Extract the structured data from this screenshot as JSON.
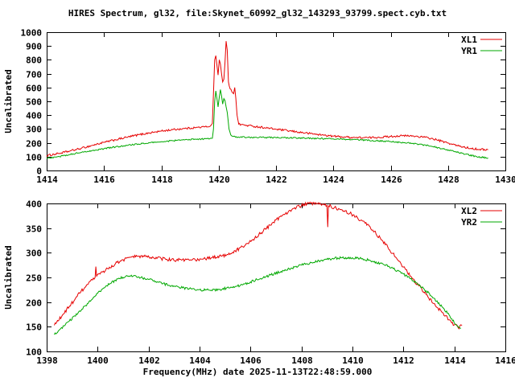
{
  "figure": {
    "title": "HIRES Spectrum, gl32, file:Skynet_60992_gl32_143293_93799.spect.cyb.txt",
    "xlabel": "Frequency(MHz) date 2025-11-13T22:48:59.000"
  },
  "chart_data": [
    {
      "type": "line",
      "title": "",
      "ylabel": "Uncalibrated",
      "xlim": [
        1414,
        1430
      ],
      "ylim": [
        0,
        1000
      ],
      "xtick_step": 2,
      "ytick_step": 100,
      "grid": false,
      "legend_position": "top-right",
      "series": [
        {
          "name": "XL1",
          "color": "#e60000",
          "noise": 7,
          "points": [
            [
              1414.0,
              108
            ],
            [
              1414.4,
              122
            ],
            [
              1414.8,
              140
            ],
            [
              1415.2,
              160
            ],
            [
              1415.6,
              182
            ],
            [
              1416.0,
              203
            ],
            [
              1416.4,
              222
            ],
            [
              1416.8,
              240
            ],
            [
              1417.2,
              258
            ],
            [
              1417.6,
              272
            ],
            [
              1418.0,
              285
            ],
            [
              1418.4,
              295
            ],
            [
              1418.8,
              303
            ],
            [
              1419.2,
              310
            ],
            [
              1419.5,
              315
            ],
            [
              1419.7,
              320
            ],
            [
              1419.78,
              340
            ],
            [
              1419.82,
              560
            ],
            [
              1419.86,
              800
            ],
            [
              1419.9,
              830
            ],
            [
              1419.94,
              760
            ],
            [
              1419.98,
              690
            ],
            [
              1420.02,
              800
            ],
            [
              1420.06,
              770
            ],
            [
              1420.1,
              700
            ],
            [
              1420.14,
              640
            ],
            [
              1420.18,
              660
            ],
            [
              1420.22,
              780
            ],
            [
              1420.26,
              935
            ],
            [
              1420.3,
              870
            ],
            [
              1420.34,
              640
            ],
            [
              1420.4,
              590
            ],
            [
              1420.46,
              570
            ],
            [
              1420.52,
              555
            ],
            [
              1420.56,
              600
            ],
            [
              1420.6,
              520
            ],
            [
              1420.64,
              400
            ],
            [
              1420.7,
              335
            ],
            [
              1420.9,
              328
            ],
            [
              1421.2,
              320
            ],
            [
              1421.6,
              310
            ],
            [
              1422.0,
              298
            ],
            [
              1422.4,
              288
            ],
            [
              1422.8,
              277
            ],
            [
              1423.2,
              267
            ],
            [
              1423.6,
              257
            ],
            [
              1424.0,
              248
            ],
            [
              1424.4,
              242
            ],
            [
              1424.8,
              238
            ],
            [
              1425.2,
              237
            ],
            [
              1425.6,
              240
            ],
            [
              1426.0,
              246
            ],
            [
              1426.4,
              251
            ],
            [
              1426.8,
              249
            ],
            [
              1427.2,
              240
            ],
            [
              1427.6,
              222
            ],
            [
              1428.0,
              198
            ],
            [
              1428.4,
              175
            ],
            [
              1428.8,
              160
            ],
            [
              1429.1,
              153
            ],
            [
              1429.4,
              150
            ]
          ]
        },
        {
          "name": "YR1",
          "color": "#00a800",
          "noise": 5,
          "points": [
            [
              1414.0,
              88
            ],
            [
              1414.4,
              100
            ],
            [
              1414.8,
              115
            ],
            [
              1415.2,
              130
            ],
            [
              1415.6,
              145
            ],
            [
              1416.0,
              158
            ],
            [
              1416.4,
              170
            ],
            [
              1416.8,
              181
            ],
            [
              1417.2,
              191
            ],
            [
              1417.6,
              200
            ],
            [
              1418.0,
              208
            ],
            [
              1418.4,
              215
            ],
            [
              1418.8,
              221
            ],
            [
              1419.2,
              226
            ],
            [
              1419.6,
              230
            ],
            [
              1419.78,
              233
            ],
            [
              1419.82,
              300
            ],
            [
              1419.86,
              500
            ],
            [
              1419.9,
              575
            ],
            [
              1419.94,
              520
            ],
            [
              1419.98,
              460
            ],
            [
              1420.02,
              530
            ],
            [
              1420.06,
              585
            ],
            [
              1420.1,
              540
            ],
            [
              1420.14,
              480
            ],
            [
              1420.18,
              520
            ],
            [
              1420.22,
              505
            ],
            [
              1420.26,
              460
            ],
            [
              1420.3,
              420
            ],
            [
              1420.36,
              300
            ],
            [
              1420.42,
              258
            ],
            [
              1420.5,
              246
            ],
            [
              1420.7,
              242
            ],
            [
              1421.0,
              240
            ],
            [
              1421.5,
              239
            ],
            [
              1422.0,
              238
            ],
            [
              1422.5,
              236
            ],
            [
              1423.0,
              234
            ],
            [
              1423.5,
              231
            ],
            [
              1424.0,
              228
            ],
            [
              1424.5,
              224
            ],
            [
              1425.0,
              220
            ],
            [
              1425.5,
              215
            ],
            [
              1426.0,
              209
            ],
            [
              1426.5,
              201
            ],
            [
              1427.0,
              190
            ],
            [
              1427.4,
              176
            ],
            [
              1427.8,
              158
            ],
            [
              1428.2,
              138
            ],
            [
              1428.6,
              118
            ],
            [
              1429.0,
              100
            ],
            [
              1429.4,
              90
            ]
          ]
        }
      ]
    },
    {
      "type": "line",
      "title": "",
      "ylabel": "Uncalibrated",
      "xlim": [
        1398,
        1416
      ],
      "ylim": [
        100,
        400
      ],
      "xtick_step": 2,
      "ytick_step": 50,
      "grid": false,
      "legend_position": "top-right",
      "series": [
        {
          "name": "XL2",
          "color": "#e60000",
          "noise": 3.5,
          "points": [
            [
              1398.3,
              153
            ],
            [
              1398.6,
              172
            ],
            [
              1398.9,
              192
            ],
            [
              1399.2,
              212
            ],
            [
              1399.5,
              230
            ],
            [
              1399.8,
              245
            ],
            [
              1399.9,
              250
            ],
            [
              1399.93,
              272
            ],
            [
              1399.96,
              252
            ],
            [
              1400.1,
              257
            ],
            [
              1400.4,
              268
            ],
            [
              1400.7,
              278
            ],
            [
              1401.0,
              286
            ],
            [
              1401.3,
              291
            ],
            [
              1401.6,
              293
            ],
            [
              1401.9,
              292
            ],
            [
              1402.2,
              290
            ],
            [
              1402.5,
              288
            ],
            [
              1402.9,
              286
            ],
            [
              1403.3,
              285
            ],
            [
              1403.7,
              285
            ],
            [
              1404.1,
              287
            ],
            [
              1404.5,
              290
            ],
            [
              1404.9,
              294
            ],
            [
              1405.3,
              301
            ],
            [
              1405.7,
              312
            ],
            [
              1406.1,
              327
            ],
            [
              1406.5,
              344
            ],
            [
              1406.9,
              362
            ],
            [
              1407.3,
              378
            ],
            [
              1407.7,
              390
            ],
            [
              1408.0,
              396
            ],
            [
              1408.3,
              400
            ],
            [
              1408.6,
              399
            ],
            [
              1408.9,
              397
            ],
            [
              1409.0,
              396
            ],
            [
              1409.03,
              352
            ],
            [
              1409.06,
              395
            ],
            [
              1409.3,
              392
            ],
            [
              1409.6,
              387
            ],
            [
              1409.9,
              380
            ],
            [
              1410.2,
              371
            ],
            [
              1410.5,
              360
            ],
            [
              1410.8,
              346
            ],
            [
              1411.1,
              329
            ],
            [
              1411.4,
              310
            ],
            [
              1411.7,
              291
            ],
            [
              1412.0,
              271
            ],
            [
              1412.3,
              252
            ],
            [
              1412.6,
              233
            ],
            [
              1412.9,
              215
            ],
            [
              1413.2,
              197
            ],
            [
              1413.5,
              180
            ],
            [
              1413.8,
              164
            ],
            [
              1414.0,
              154
            ],
            [
              1414.15,
              148
            ],
            [
              1414.3,
              153
            ]
          ]
        },
        {
          "name": "YR2",
          "color": "#00a800",
          "noise": 2.5,
          "points": [
            [
              1398.3,
              134
            ],
            [
              1398.7,
              152
            ],
            [
              1399.1,
              172
            ],
            [
              1399.5,
              192
            ],
            [
              1399.9,
              212
            ],
            [
              1400.2,
              227
            ],
            [
              1400.5,
              238
            ],
            [
              1400.8,
              247
            ],
            [
              1401.1,
              252
            ],
            [
              1401.4,
              253
            ],
            [
              1401.7,
              250
            ],
            [
              1402.0,
              246
            ],
            [
              1402.4,
              240
            ],
            [
              1402.8,
              234
            ],
            [
              1403.2,
              230
            ],
            [
              1403.6,
              227
            ],
            [
              1404.0,
              225
            ],
            [
              1404.4,
              224
            ],
            [
              1404.8,
              226
            ],
            [
              1405.2,
              229
            ],
            [
              1405.6,
              234
            ],
            [
              1406.0,
              241
            ],
            [
              1406.4,
              248
            ],
            [
              1406.8,
              255
            ],
            [
              1407.2,
              262
            ],
            [
              1407.6,
              269
            ],
            [
              1408.0,
              275
            ],
            [
              1408.4,
              280
            ],
            [
              1408.8,
              285
            ],
            [
              1409.2,
              288
            ],
            [
              1409.6,
              290
            ],
            [
              1410.0,
              290
            ],
            [
              1410.4,
              288
            ],
            [
              1410.8,
              283
            ],
            [
              1411.2,
              277
            ],
            [
              1411.6,
              268
            ],
            [
              1412.0,
              257
            ],
            [
              1412.4,
              243
            ],
            [
              1412.8,
              227
            ],
            [
              1413.2,
              208
            ],
            [
              1413.6,
              186
            ],
            [
              1413.9,
              166
            ],
            [
              1414.1,
              152
            ],
            [
              1414.25,
              146
            ]
          ]
        }
      ]
    }
  ]
}
